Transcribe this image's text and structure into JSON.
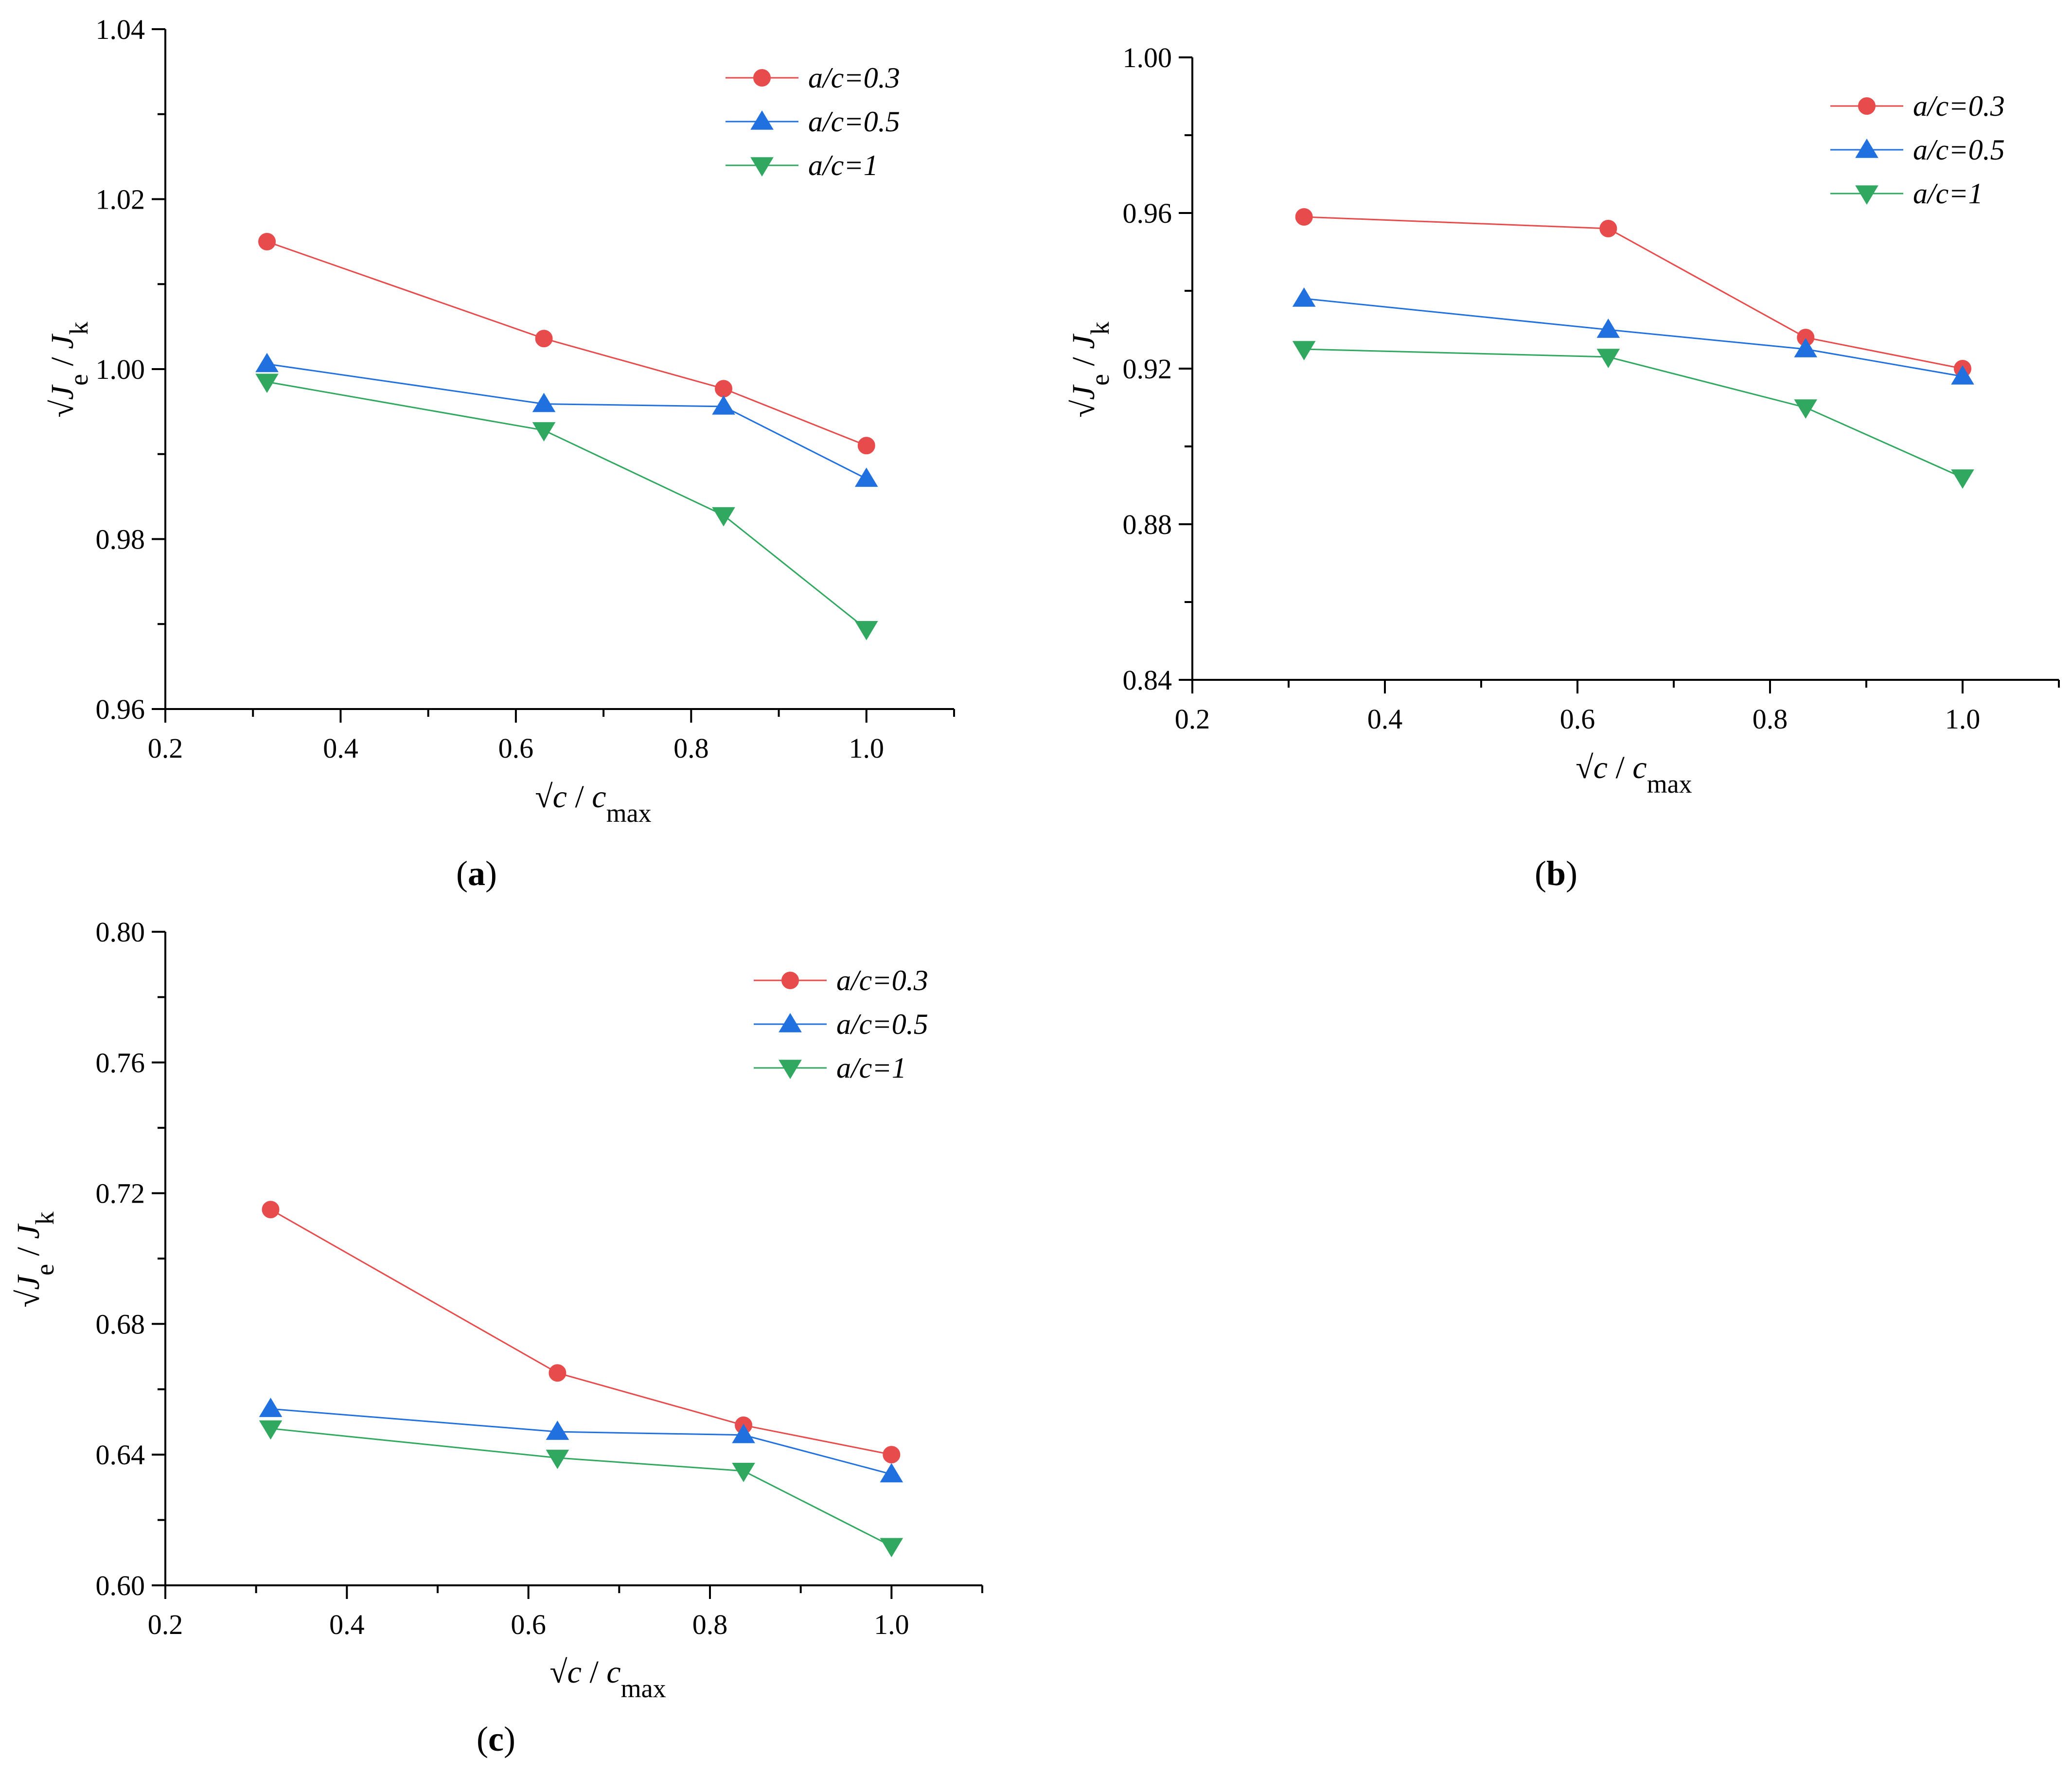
{
  "figure": {
    "panels": [
      {
        "id": "a",
        "caption_label": "a"
      },
      {
        "id": "b",
        "caption_label": "b"
      },
      {
        "id": "c",
        "caption_label": "c"
      }
    ]
  },
  "colors": {
    "series_0": "#e84b4b",
    "series_1": "#2070e0",
    "series_2": "#30a860",
    "axis": "#000000"
  },
  "chart_data": [
    {
      "id": "a",
      "type": "line",
      "caption": "(a)",
      "xlabel": "√c / c_max",
      "ylabel": "√J_e / J_k",
      "xlim": [
        0.2,
        1.1
      ],
      "ylim": [
        0.96,
        1.04
      ],
      "xticks": [
        "0.2",
        "0.4",
        "0.6",
        "0.8",
        "1.0"
      ],
      "xtick_values": [
        0.2,
        0.4,
        0.6,
        0.8,
        1.0
      ],
      "yticks": [
        "0.96",
        "0.98",
        "1.00",
        "1.02",
        "1.04"
      ],
      "ytick_values": [
        0.96,
        0.98,
        1.0,
        1.02,
        1.04
      ],
      "legend_position": "top-right",
      "x": [
        0.316,
        0.632,
        0.837,
        1.0
      ],
      "series": [
        {
          "name": "a/c=0.3",
          "marker": "circle",
          "values": [
            1.015,
            1.0036,
            0.9977,
            0.991
          ]
        },
        {
          "name": "a/c=0.5",
          "marker": "triangle-up",
          "values": [
            1.0006,
            0.9959,
            0.9956,
            0.9871
          ]
        },
        {
          "name": "a/c=1",
          "marker": "triangle-down",
          "values": [
            0.9985,
            0.9928,
            0.9828,
            0.9694
          ]
        }
      ]
    },
    {
      "id": "b",
      "type": "line",
      "caption": "(b)",
      "xlabel": "√c / c_max",
      "ylabel": "√J_e / J_k",
      "xlim": [
        0.2,
        1.1
      ],
      "ylim": [
        0.84,
        1.0
      ],
      "xticks": [
        "0.2",
        "0.4",
        "0.6",
        "0.8",
        "1.0"
      ],
      "xtick_values": [
        0.2,
        0.4,
        0.6,
        0.8,
        1.0
      ],
      "yticks": [
        "0.84",
        "0.88",
        "0.92",
        "0.96",
        "1.00"
      ],
      "ytick_values": [
        0.84,
        0.88,
        0.92,
        0.96,
        1.0
      ],
      "legend_position": "top-right",
      "x": [
        0.316,
        0.632,
        0.837,
        1.0
      ],
      "series": [
        {
          "name": "a/c=0.3",
          "marker": "circle",
          "values": [
            0.959,
            0.956,
            0.928,
            0.92
          ]
        },
        {
          "name": "a/c=0.5",
          "marker": "triangle-up",
          "values": [
            0.938,
            0.93,
            0.925,
            0.918
          ]
        },
        {
          "name": "a/c=1",
          "marker": "triangle-down",
          "values": [
            0.925,
            0.923,
            0.91,
            0.892
          ]
        }
      ]
    },
    {
      "id": "c",
      "type": "line",
      "caption": "(c)",
      "xlabel": "√c / c_max",
      "ylabel": "√J_e / J_k",
      "xlim": [
        0.2,
        1.1
      ],
      "ylim": [
        0.6,
        0.8
      ],
      "xticks": [
        "0.2",
        "0.4",
        "0.6",
        "0.8",
        "1.0"
      ],
      "xtick_values": [
        0.2,
        0.4,
        0.6,
        0.8,
        1.0
      ],
      "yticks": [
        "0.60",
        "0.64",
        "0.68",
        "0.72",
        "0.76",
        "0.80"
      ],
      "ytick_values": [
        0.6,
        0.64,
        0.68,
        0.72,
        0.76,
        0.8
      ],
      "legend_position": "top-right",
      "x": [
        0.316,
        0.632,
        0.837,
        1.0
      ],
      "series": [
        {
          "name": "a/c=0.3",
          "marker": "circle",
          "values": [
            0.715,
            0.665,
            0.649,
            0.64
          ]
        },
        {
          "name": "a/c=0.5",
          "marker": "triangle-up",
          "values": [
            0.654,
            0.647,
            0.646,
            0.634
          ]
        },
        {
          "name": "a/c=1",
          "marker": "triangle-down",
          "values": [
            0.648,
            0.639,
            0.635,
            0.612
          ]
        }
      ]
    }
  ]
}
